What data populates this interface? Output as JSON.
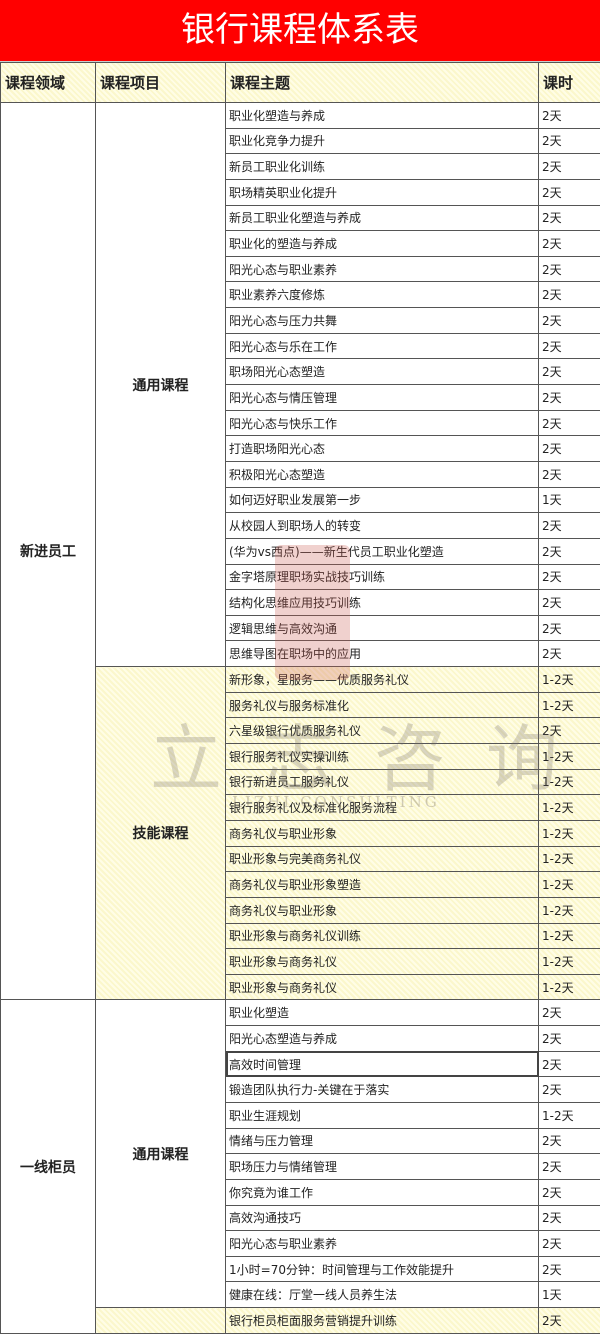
{
  "title": "银行课程体系表",
  "headers": {
    "area": "课程领域",
    "project": "课程项目",
    "topic": "课程主题",
    "hours": "课时"
  },
  "watermark": {
    "logo": "立志咨询",
    "sub": "LIZHI CONSULTING"
  },
  "areas": [
    {
      "name": "新进员工",
      "groups": [
        {
          "name": "通用课程",
          "type": "general",
          "rows": [
            [
              "职业化塑造与养成",
              "2天"
            ],
            [
              "职业化竞争力提升",
              "2天"
            ],
            [
              "新员工职业化训练",
              "2天"
            ],
            [
              "职场精英职业化提升",
              "2天"
            ],
            [
              "新员工职业化塑造与养成",
              "2天"
            ],
            [
              "职业化的塑造与养成",
              "2天"
            ],
            [
              "阳光心态与职业素养",
              "2天"
            ],
            [
              "职业素养六度修炼",
              "2天"
            ],
            [
              "阳光心态与压力共舞",
              "2天"
            ],
            [
              "阳光心态与乐在工作",
              "2天"
            ],
            [
              "职场阳光心态塑造",
              "2天"
            ],
            [
              "阳光心态与情压管理",
              "2天"
            ],
            [
              "阳光心态与快乐工作",
              "2天"
            ],
            [
              "打造职场阳光心态",
              "2天"
            ],
            [
              "积极阳光心态塑造",
              "2天"
            ],
            [
              "如何迈好职业发展第一步",
              "1天"
            ],
            [
              "从校园人到职场人的转变",
              "2天"
            ],
            [
              "(华为vs西点)——新生代员工职业化塑造",
              "2天"
            ],
            [
              "金字塔原理职场实战技巧训练",
              "2天"
            ],
            [
              "结构化思维应用技巧训练",
              "2天"
            ],
            [
              "逻辑思维与高效沟通",
              "2天"
            ],
            [
              "思维导图在职场中的应用",
              "2天"
            ]
          ]
        },
        {
          "name": "技能课程",
          "type": "skill",
          "rows": [
            [
              "新形象，星服务——优质服务礼仪",
              "1-2天"
            ],
            [
              "服务礼仪与服务标准化",
              "1-2天"
            ],
            [
              "六星级银行优质服务礼仪",
              "2天"
            ],
            [
              "银行服务礼仪实操训练",
              "1-2天"
            ],
            [
              "银行新进员工服务礼仪",
              "1-2天"
            ],
            [
              "银行服务礼仪及标准化服务流程",
              "1-2天"
            ],
            [
              "商务礼仪与职业形象",
              "1-2天"
            ],
            [
              "职业形象与完美商务礼仪",
              "1-2天"
            ],
            [
              "商务礼仪与职业形象塑造",
              "1-2天"
            ],
            [
              "商务礼仪与职业形象",
              "1-2天"
            ],
            [
              "职业形象与商务礼仪训练",
              "1-2天"
            ],
            [
              "职业形象与商务礼仪",
              "1-2天"
            ],
            [
              "职业形象与商务礼仪",
              "1-2天"
            ]
          ]
        }
      ]
    },
    {
      "name": "一线柜员",
      "groups": [
        {
          "name": "通用课程",
          "type": "general",
          "rows": [
            [
              "职业化塑造",
              "2天"
            ],
            [
              "阳光心态塑造与养成",
              "2天"
            ],
            [
              "高效时间管理",
              "2天"
            ],
            [
              "锻造团队执行力-关键在于落实",
              "2天"
            ],
            [
              "职业生涯规划",
              "1-2天"
            ],
            [
              "情绪与压力管理",
              "2天"
            ],
            [
              "职场压力与情绪管理",
              "2天"
            ],
            [
              "你究竟为谁工作",
              "2天"
            ],
            [
              "高效沟通技巧",
              "2天"
            ],
            [
              "阳光心态与职业素养",
              "2天"
            ],
            [
              "1小时=70分钟：时间管理与工作效能提升",
              "2天"
            ],
            [
              "健康在线：厅堂一线人员养生法",
              "1天"
            ]
          ]
        },
        {
          "name": "",
          "type": "skill",
          "rows": [
            [
              "银行柜员柜面服务营销提升训练",
              "2天"
            ]
          ]
        }
      ]
    }
  ]
}
